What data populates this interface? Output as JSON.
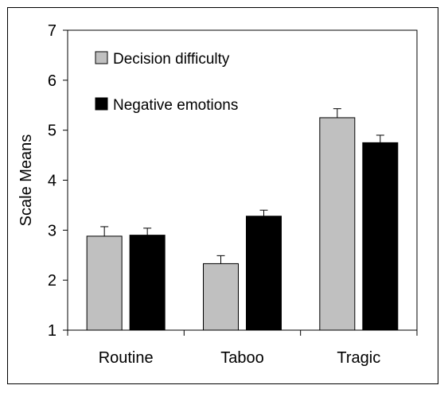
{
  "chart_data": {
    "type": "bar",
    "title": "",
    "xlabel": "",
    "ylabel": "Scale Means",
    "ylim": [
      1,
      7
    ],
    "yticks": [
      "1",
      "2",
      "3",
      "4",
      "5",
      "6",
      "7"
    ],
    "categories": [
      "Routine",
      "Taboo",
      "Tragic"
    ],
    "series": [
      {
        "name": "Decision difficulty",
        "color": "#c0c0c0",
        "values": [
          2.88,
          2.33,
          5.25
        ],
        "errors": [
          0.19,
          0.16,
          0.18
        ]
      },
      {
        "name": "Negative emotions",
        "color": "#000000",
        "values": [
          2.9,
          3.28,
          4.75
        ],
        "errors": [
          0.14,
          0.12,
          0.15
        ]
      }
    ],
    "legend_position": "top-left",
    "grid": false
  }
}
